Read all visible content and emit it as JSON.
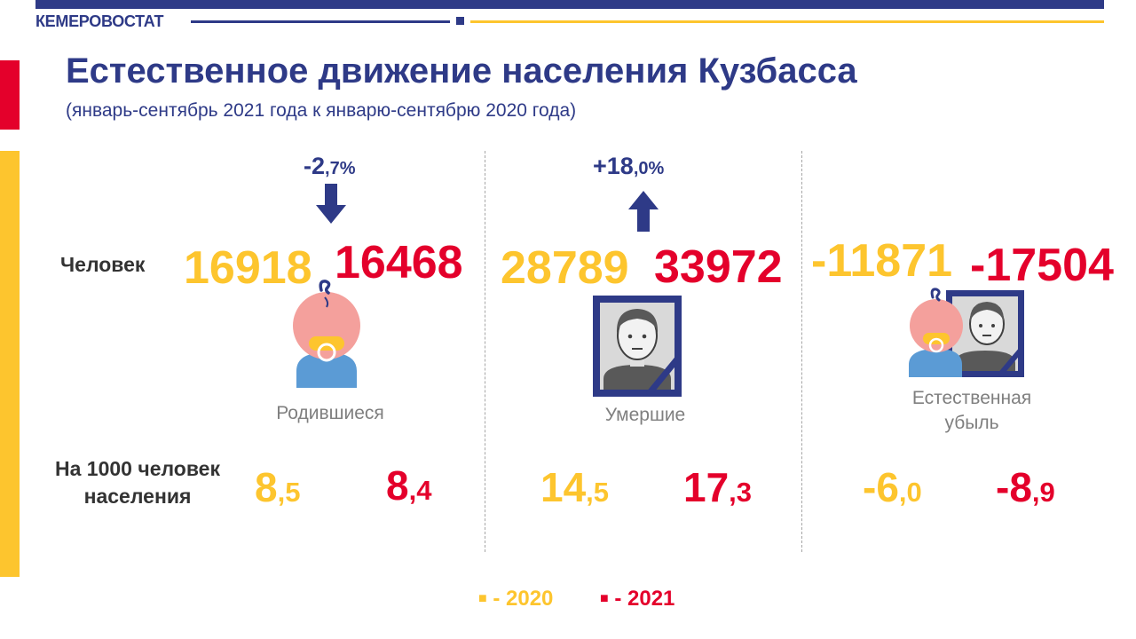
{
  "header": {
    "org": "КЕМЕРОВОСТАТ"
  },
  "title": "Естественное движение населения Кузбасса",
  "subtitle": "(январь-сентябрь 2021 года к январю-сентябрю 2020 года)",
  "row_labels": {
    "people": "Человек",
    "per1000_line1": "На 1000 человек",
    "per1000_line2": "населения"
  },
  "births": {
    "change_int": "-2",
    "change_dec": ",7%",
    "direction": "down",
    "v2020": "16918",
    "v2021": "16468",
    "caption": "Родившиеся",
    "rate2020_int": "8",
    "rate2020_dec": ",5",
    "rate2021_int": "8",
    "rate2021_dec": ",4"
  },
  "deaths": {
    "change_int": "+18",
    "change_dec": ",0%",
    "direction": "up",
    "v2020": "28789",
    "v2021": "33972",
    "caption": "Умершие",
    "rate2020_int": "14",
    "rate2020_dec": ",5",
    "rate2021_int": "17",
    "rate2021_dec": ",3"
  },
  "natural": {
    "v2020": "-11871",
    "v2021": "-17504",
    "caption_line1": "Естественная",
    "caption_line2": "убыль",
    "rate2020_int": "-6",
    "rate2020_dec": ",0",
    "rate2021_int": "-8",
    "rate2021_dec": ",9"
  },
  "legend": {
    "marker": "■",
    "label2020": "- 2020",
    "label2021": "- 2021"
  },
  "colors": {
    "navy": "#2E3A87",
    "y2020": "#FDC52E",
    "y2021": "#E4002B",
    "gray": "#7F7F7F"
  },
  "icons": {
    "births": "baby-icon",
    "deaths": "mourning-portrait-icon",
    "natural": "baby-and-portrait-icon"
  }
}
